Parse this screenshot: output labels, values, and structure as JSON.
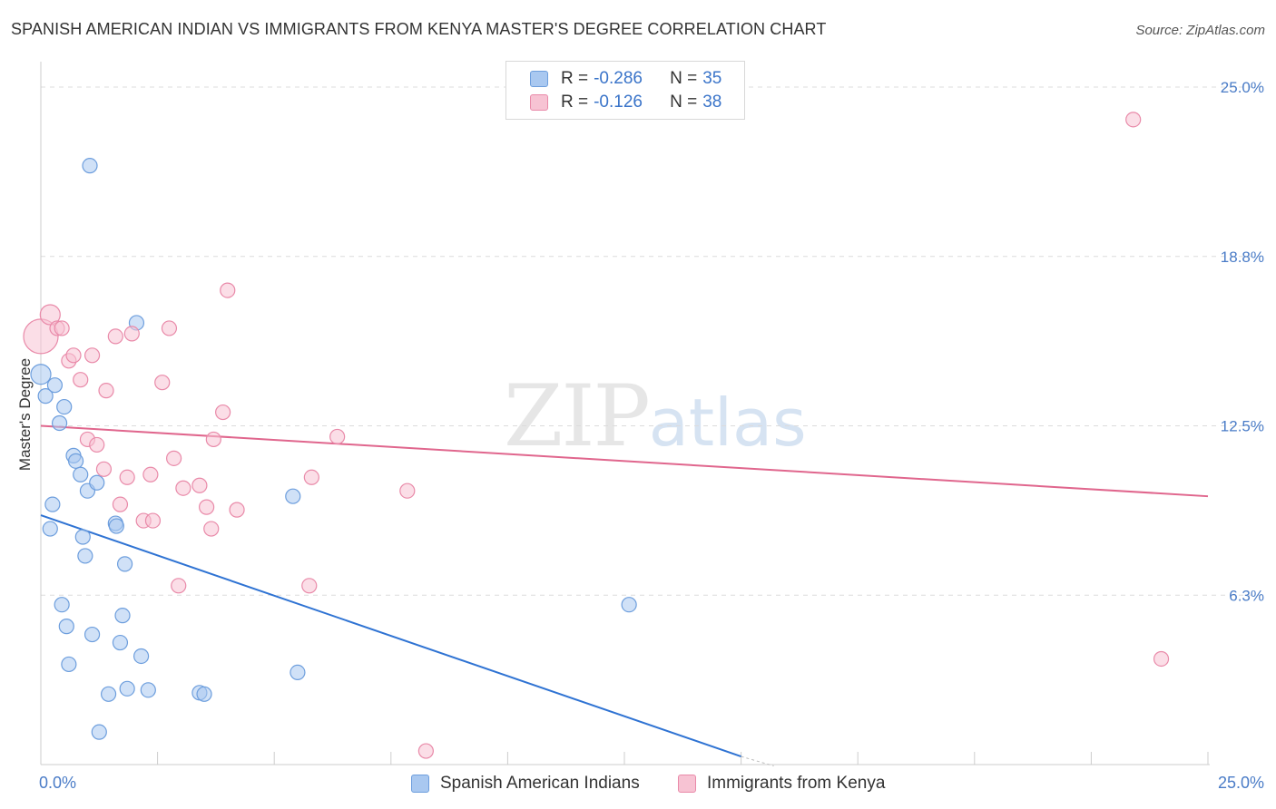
{
  "header": {
    "title": "SPANISH AMERICAN INDIAN VS IMMIGRANTS FROM KENYA MASTER'S DEGREE CORRELATION CHART",
    "source": "Source: ZipAtlas.com"
  },
  "watermark": {
    "zip": "ZIP",
    "atlas": "atlas"
  },
  "legend": {
    "rows": [
      {
        "r_label": "R =",
        "r_value": "-0.286",
        "n_label": "N =",
        "n_value": "35",
        "color": "#a9c8f0",
        "border": "#6d9edd"
      },
      {
        "r_label": "R =",
        "r_value": "-0.126",
        "n_label": "N =",
        "n_value": "38",
        "color": "#f7c3d3",
        "border": "#e98aa9"
      }
    ]
  },
  "bottom_legend": {
    "series1": "Spanish American Indians",
    "series2": "Immigrants from Kenya"
  },
  "chart_data": {
    "type": "scatter",
    "title": "SPANISH AMERICAN INDIAN VS IMMIGRANTS FROM KENYA MASTER'S DEGREE CORRELATION CHART",
    "xlabel": "",
    "ylabel": "Master's Degree",
    "xlim": [
      0,
      25
    ],
    "ylim": [
      0,
      26
    ],
    "x_tick_labels": [
      "0.0%",
      "25.0%"
    ],
    "y_ticks": [
      6.25,
      12.5,
      18.75,
      25.0
    ],
    "y_tick_labels": [
      "6.3%",
      "12.5%",
      "18.8%",
      "25.0%"
    ],
    "grid": true,
    "legend_position": "top-center",
    "series": [
      {
        "name": "Spanish American Indians",
        "color": "#a9c8f0",
        "stroke": "#6d9edd",
        "line_color": "#2f73d3",
        "trend": {
          "x0": 0.0,
          "y0": 9.2,
          "x1": 15.0,
          "y1": 0.3,
          "dash_to": [
            15.7,
            -0.05
          ]
        },
        "points": [
          [
            1.05,
            22.1
          ],
          [
            0.0,
            14.4
          ],
          [
            0.1,
            13.6
          ],
          [
            0.3,
            14.0
          ],
          [
            0.4,
            12.6
          ],
          [
            0.5,
            13.2
          ],
          [
            0.7,
            11.4
          ],
          [
            0.75,
            11.2
          ],
          [
            0.85,
            10.7
          ],
          [
            1.0,
            10.1
          ],
          [
            1.2,
            10.4
          ],
          [
            0.25,
            9.6
          ],
          [
            0.2,
            8.7
          ],
          [
            0.9,
            8.4
          ],
          [
            0.95,
            7.7
          ],
          [
            1.6,
            8.9
          ],
          [
            1.62,
            8.8
          ],
          [
            1.8,
            7.4
          ],
          [
            0.45,
            5.9
          ],
          [
            0.55,
            5.1
          ],
          [
            1.1,
            4.8
          ],
          [
            1.75,
            5.5
          ],
          [
            1.7,
            4.5
          ],
          [
            2.15,
            4.0
          ],
          [
            0.6,
            3.7
          ],
          [
            1.45,
            2.6
          ],
          [
            1.85,
            2.8
          ],
          [
            2.3,
            2.75
          ],
          [
            3.4,
            2.65
          ],
          [
            3.5,
            2.6
          ],
          [
            1.25,
            1.2
          ],
          [
            5.4,
            9.9
          ],
          [
            2.05,
            16.3
          ],
          [
            12.6,
            5.9
          ],
          [
            5.5,
            3.4
          ]
        ]
      },
      {
        "name": "Immigrants from Kenya",
        "color": "#f7c3d3",
        "stroke": "#e98aa9",
        "line_color": "#e0668d",
        "trend": {
          "x0": 0.0,
          "y0": 12.5,
          "x1": 25.0,
          "y1": 9.9
        },
        "points": [
          [
            0.0,
            15.8
          ],
          [
            0.2,
            16.6
          ],
          [
            0.35,
            16.1
          ],
          [
            0.45,
            16.1
          ],
          [
            0.6,
            14.9
          ],
          [
            0.7,
            15.1
          ],
          [
            0.85,
            14.2
          ],
          [
            1.1,
            15.1
          ],
          [
            1.4,
            13.8
          ],
          [
            1.6,
            15.8
          ],
          [
            1.95,
            15.9
          ],
          [
            2.75,
            16.1
          ],
          [
            4.0,
            17.5
          ],
          [
            2.6,
            14.1
          ],
          [
            3.9,
            13.0
          ],
          [
            1.0,
            12.0
          ],
          [
            1.2,
            11.8
          ],
          [
            3.7,
            12.0
          ],
          [
            6.35,
            12.1
          ],
          [
            1.35,
            10.9
          ],
          [
            1.85,
            10.6
          ],
          [
            2.35,
            10.7
          ],
          [
            2.85,
            11.3
          ],
          [
            3.05,
            10.2
          ],
          [
            3.4,
            10.3
          ],
          [
            1.7,
            9.6
          ],
          [
            3.55,
            9.5
          ],
          [
            4.2,
            9.4
          ],
          [
            2.2,
            9.0
          ],
          [
            2.4,
            9.0
          ],
          [
            3.65,
            8.7
          ],
          [
            5.8,
            10.6
          ],
          [
            7.85,
            10.1
          ],
          [
            2.95,
            6.6
          ],
          [
            5.75,
            6.6
          ],
          [
            8.25,
            0.5
          ],
          [
            23.4,
            23.8
          ],
          [
            24.0,
            3.9
          ]
        ]
      }
    ]
  }
}
